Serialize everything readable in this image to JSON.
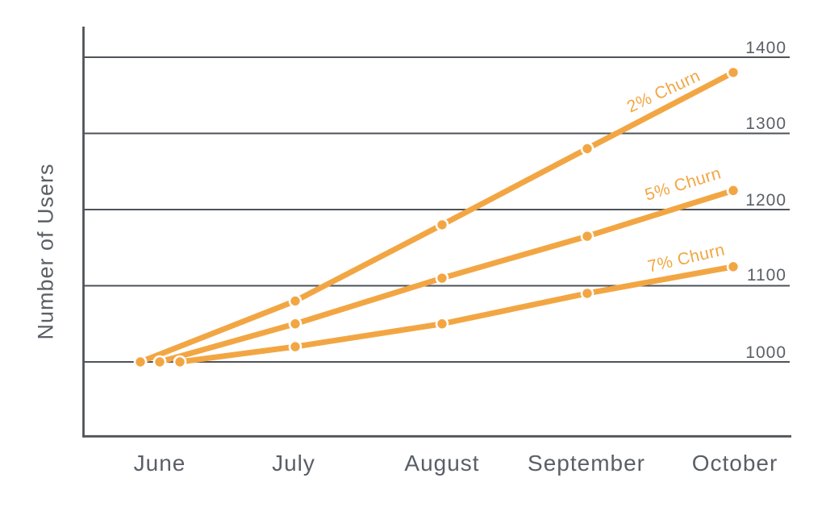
{
  "chart_data": {
    "type": "line",
    "title": "",
    "xlabel": "",
    "ylabel": "Number of Users",
    "categories": [
      "June",
      "July",
      "August",
      "September",
      "October"
    ],
    "series": [
      {
        "name": "2% Churn",
        "values": [
          1000,
          1080,
          1180,
          1280,
          1380
        ]
      },
      {
        "name": "5% Churn",
        "values": [
          1000,
          1050,
          1110,
          1165,
          1225
        ]
      },
      {
        "name": "7% Churn",
        "values": [
          1000,
          1020,
          1050,
          1090,
          1125
        ]
      }
    ],
    "y_ticks": [
      1000,
      1100,
      1200,
      1300,
      1400
    ],
    "ylim": [
      900,
      1440
    ],
    "grid": "horizontal",
    "legend_position": "inline-labels-above-line-ends",
    "colors": {
      "line": "#f2a643",
      "marker_ring": "#ffffff",
      "axis": "#4e5359",
      "grid": "#4e5359",
      "text": "#5a5f66"
    }
  }
}
